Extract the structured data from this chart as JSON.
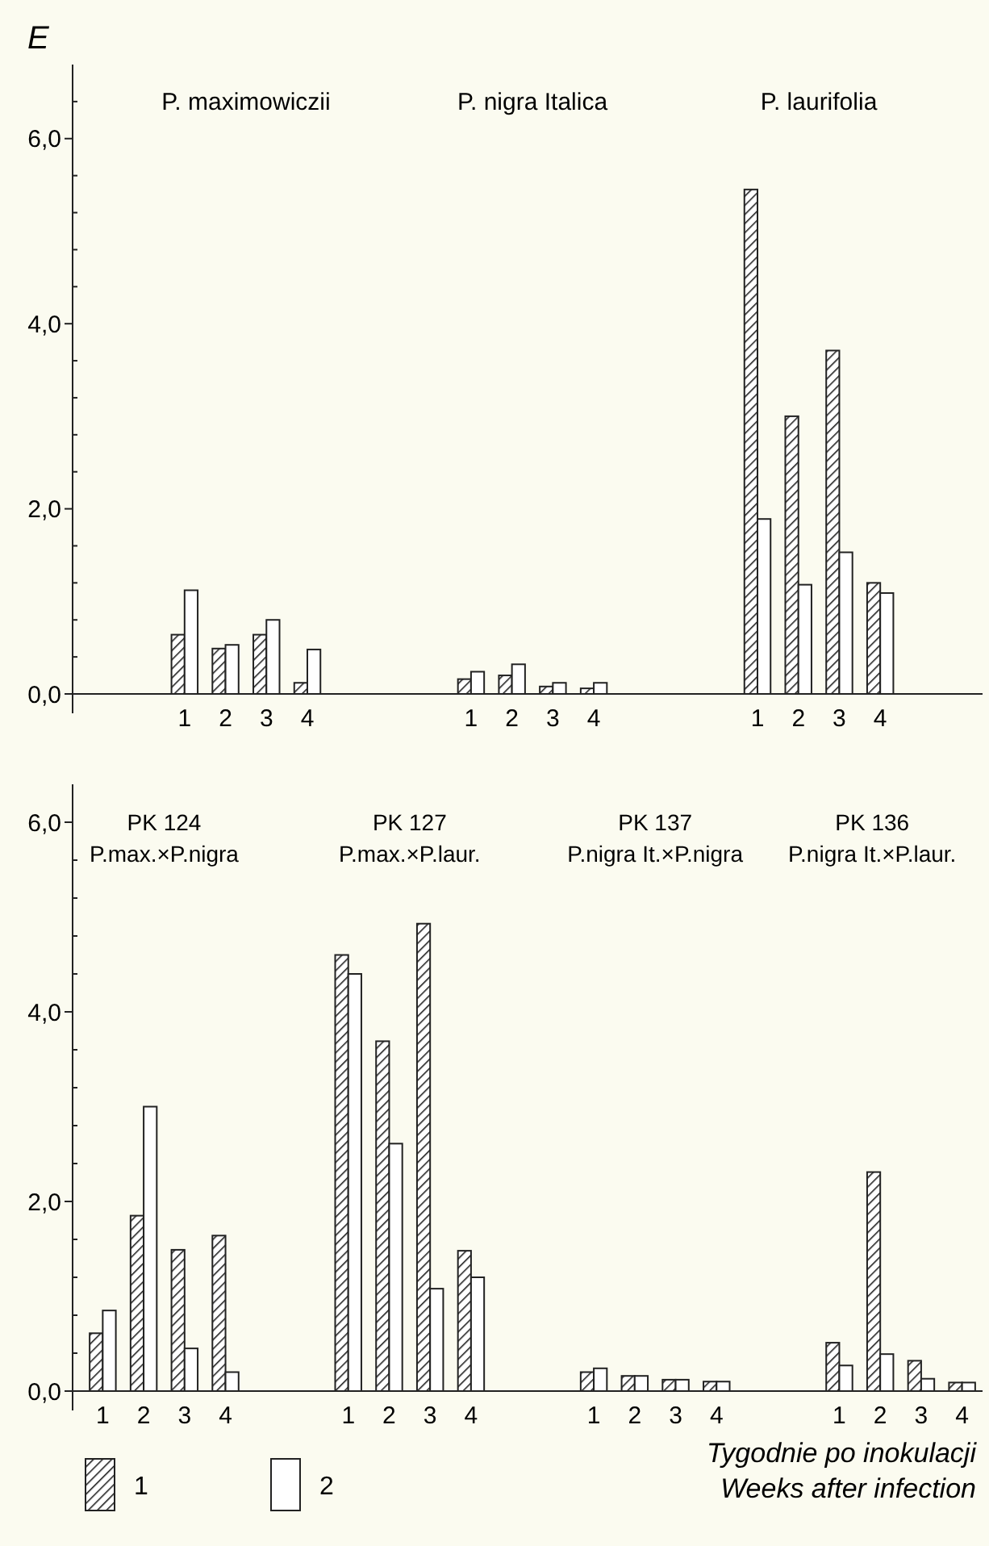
{
  "chart_data": [
    {
      "type": "bar",
      "ylabel": "E",
      "categories": [
        null,
        null,
        "1",
        "2",
        "3",
        "4",
        null,
        null,
        null,
        "1",
        "2",
        "3",
        "4",
        null,
        null,
        null,
        "1",
        "2",
        "3",
        "4",
        null,
        null
      ],
      "series": [
        {
          "color": "#222222",
          "values": [
            null,
            null,
            0.64,
            0.49,
            0.64,
            0.12,
            null,
            null,
            null,
            0.16,
            0.2,
            0.08,
            0.06,
            null,
            null,
            null,
            5.45,
            3.0,
            3.71,
            1.2,
            null,
            null
          ]
        },
        {
          "color": "#ffffff",
          "values": [
            null,
            null,
            1.12,
            0.53,
            0.8,
            0.48,
            null,
            null,
            null,
            0.24,
            0.32,
            0.12,
            0.12,
            null,
            null,
            null,
            1.89,
            1.18,
            1.53,
            1.09,
            null,
            null
          ]
        }
      ],
      "ylim": [
        0,
        6.8
      ],
      "yticks": [
        {
          "value": 0,
          "label": "0,0"
        },
        {
          "value": 0.4,
          "label": null
        },
        {
          "value": 0.8,
          "label": null
        },
        {
          "value": 1.2,
          "label": null
        },
        {
          "value": 1.6,
          "label": null
        },
        {
          "value": 2,
          "label": "2,0"
        },
        {
          "value": 2.4,
          "label": null
        },
        {
          "value": 2.8,
          "label": null
        },
        {
          "value": 3.2,
          "label": null
        },
        {
          "value": 3.6,
          "label": null
        },
        {
          "value": 4,
          "label": "4,0"
        },
        {
          "value": 4.4,
          "label": null
        },
        {
          "value": 4.8,
          "label": null
        },
        {
          "value": 5.2,
          "label": null
        },
        {
          "value": 5.6,
          "label": null
        },
        {
          "value": 6,
          "label": "6,0"
        },
        {
          "value": 6.4,
          "label": null
        }
      ],
      "annotations": [
        "P. maximowiczii",
        "P. nigra Italica",
        "P. laurifolia"
      ]
    },
    {
      "type": "bar",
      "xlabel": "Tygodnie po inokulacji\nWeeks after infection",
      "legend": "bottom left",
      "categories": [
        "1",
        "2",
        "3",
        "4",
        null,
        null,
        "1",
        "2",
        "3",
        "4",
        null,
        null,
        "1",
        "2",
        "3",
        "4",
        null,
        null,
        "1",
        "2",
        "3",
        "4"
      ],
      "series": [
        {
          "name": "1",
          "color": "#222222",
          "values": [
            0.61,
            1.85,
            1.49,
            1.64,
            null,
            null,
            4.6,
            3.69,
            4.93,
            1.48,
            null,
            null,
            0.2,
            0.16,
            0.12,
            0.1,
            null,
            null,
            0.51,
            2.31,
            0.32,
            0.09
          ]
        },
        {
          "name": "2",
          "color": "#ffffff",
          "values": [
            0.85,
            3.0,
            0.45,
            0.2,
            null,
            null,
            4.4,
            2.61,
            1.08,
            1.2,
            null,
            null,
            0.24,
            0.16,
            0.12,
            0.1,
            null,
            null,
            0.27,
            0.39,
            0.13,
            0.09
          ]
        }
      ],
      "ylim": [
        0,
        6.4
      ],
      "yticks": [
        {
          "value": 0,
          "label": "0,0"
        },
        {
          "value": 0.4,
          "label": null
        },
        {
          "value": 0.8,
          "label": null
        },
        {
          "value": 1.2,
          "label": null
        },
        {
          "value": 1.6,
          "label": null
        },
        {
          "value": 2,
          "label": "2,0"
        },
        {
          "value": 2.4,
          "label": null
        },
        {
          "value": 2.8,
          "label": null
        },
        {
          "value": 3.2,
          "label": null
        },
        {
          "value": 3.6,
          "label": null
        },
        {
          "value": 4,
          "label": "4,0"
        },
        {
          "value": 4.4,
          "label": null
        },
        {
          "value": 4.8,
          "label": null
        },
        {
          "value": 5.2,
          "label": null
        },
        {
          "value": 5.6,
          "label": null
        },
        {
          "value": 6,
          "label": "6,0"
        }
      ],
      "annotations": [
        "PK 124\nP.max.×P.nigra",
        "PK 127\nP.max.×P.laur.",
        "PK 137\nP.nigra It.×P.nigra",
        "PK 136\nP.nigra It.×P.laur."
      ]
    }
  ]
}
